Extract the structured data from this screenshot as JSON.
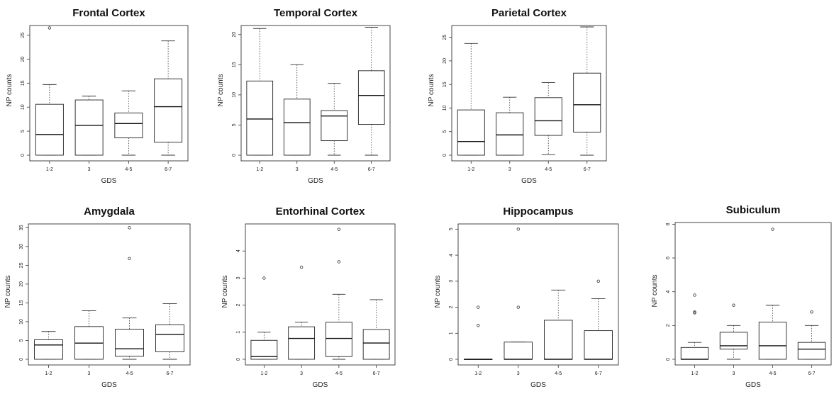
{
  "figure": {
    "xlabel": "GDS",
    "ylabel": "NP counts"
  },
  "chart_data": [
    {
      "type": "box",
      "title": "Frontal Cortex",
      "xlabel": "GDS",
      "ylabel": "NP counts",
      "ylim": [
        0,
        27
      ],
      "yticks": [
        0,
        5,
        10,
        15,
        20,
        25
      ],
      "categories": [
        "1-2",
        "3",
        "4-5",
        "6-7"
      ],
      "boxes": [
        {
          "min": 0,
          "q1": 0,
          "median": 4.3,
          "q3": 10.6,
          "max": 14.7,
          "outliers": [
            26.5
          ]
        },
        {
          "min": 0,
          "q1": 0,
          "median": 6.2,
          "q3": 11.5,
          "max": 12.3,
          "outliers": []
        },
        {
          "min": 0,
          "q1": 3.6,
          "median": 6.6,
          "q3": 8.8,
          "max": 13.4,
          "outliers": []
        },
        {
          "min": 0,
          "q1": 2.7,
          "median": 10.1,
          "q3": 15.9,
          "max": 23.8,
          "outliers": []
        }
      ]
    },
    {
      "type": "box",
      "title": "Temporal Cortex",
      "xlabel": "GDS",
      "ylabel": "NP counts",
      "ylim": [
        0,
        21.5
      ],
      "yticks": [
        0,
        5,
        10,
        15,
        20
      ],
      "categories": [
        "1-2",
        "3",
        "4-5",
        "6-7"
      ],
      "boxes": [
        {
          "min": 0,
          "q1": 0,
          "median": 6.0,
          "q3": 12.3,
          "max": 21.0,
          "outliers": []
        },
        {
          "min": 0,
          "q1": 0,
          "median": 5.4,
          "q3": 9.3,
          "max": 15.0,
          "outliers": []
        },
        {
          "min": 0,
          "q1": 2.4,
          "median": 6.5,
          "q3": 7.4,
          "max": 11.9,
          "outliers": []
        },
        {
          "min": 0,
          "q1": 5.1,
          "median": 9.9,
          "q3": 14.0,
          "max": 21.2,
          "outliers": []
        }
      ]
    },
    {
      "type": "box",
      "title": "Parietal Cortex",
      "xlabel": "GDS",
      "ylabel": "NP counts",
      "ylim": [
        0,
        27.5
      ],
      "yticks": [
        0,
        5,
        10,
        15,
        20,
        25
      ],
      "categories": [
        "1-2",
        "3",
        "4-5",
        "6-7"
      ],
      "boxes": [
        {
          "min": 0,
          "q1": 0,
          "median": 2.9,
          "q3": 9.6,
          "max": 23.7,
          "outliers": []
        },
        {
          "min": 0,
          "q1": 0,
          "median": 4.3,
          "q3": 9.0,
          "max": 12.3,
          "outliers": []
        },
        {
          "min": 0.1,
          "q1": 4.2,
          "median": 7.3,
          "q3": 12.2,
          "max": 15.4,
          "outliers": []
        },
        {
          "min": 0,
          "q1": 4.9,
          "median": 10.7,
          "q3": 17.4,
          "max": 27.2,
          "outliers": []
        }
      ]
    },
    {
      "type": "box",
      "title": "Amygdala",
      "xlabel": "GDS",
      "ylabel": "NP counts",
      "ylim": [
        0,
        36
      ],
      "yticks": [
        0,
        5,
        10,
        15,
        20,
        25,
        30,
        35
      ],
      "categories": [
        "1-2",
        "3",
        "4-5",
        "6-7"
      ],
      "boxes": [
        {
          "min": 0,
          "q1": 0,
          "median": 3.8,
          "q3": 5.2,
          "max": 7.4,
          "outliers": []
        },
        {
          "min": 0,
          "q1": 0,
          "median": 4.3,
          "q3": 8.7,
          "max": 12.9,
          "outliers": []
        },
        {
          "min": 0,
          "q1": 0.8,
          "median": 2.8,
          "q3": 8.0,
          "max": 11.0,
          "outliers": [
            26.8,
            35.0
          ]
        },
        {
          "min": 0,
          "q1": 2.0,
          "median": 6.6,
          "q3": 9.2,
          "max": 14.8,
          "outliers": []
        }
      ]
    },
    {
      "type": "box",
      "title": "Entorhinal Cortex",
      "xlabel": "GDS",
      "ylabel": "NP counts",
      "ylim": [
        0,
        5
      ],
      "yticks": [
        0,
        1,
        2,
        3,
        4
      ],
      "categories": [
        "1-2",
        "3",
        "4-5",
        "6-7"
      ],
      "boxes": [
        {
          "min": 0,
          "q1": 0,
          "median": 0.1,
          "q3": 0.7,
          "max": 1.0,
          "outliers": [
            3.0
          ]
        },
        {
          "min": 0,
          "q1": 0,
          "median": 0.77,
          "q3": 1.2,
          "max": 1.37,
          "outliers": [
            3.4
          ]
        },
        {
          "min": 0,
          "q1": 0.1,
          "median": 0.77,
          "q3": 1.37,
          "max": 2.4,
          "outliers": [
            3.6,
            4.8
          ]
        },
        {
          "min": 0,
          "q1": 0,
          "median": 0.6,
          "q3": 1.1,
          "max": 2.2,
          "outliers": []
        }
      ]
    },
    {
      "type": "box",
      "title": "Hippocampus",
      "xlabel": "GDS",
      "ylabel": "NP counts",
      "ylim": [
        0,
        5.2
      ],
      "yticks": [
        0,
        1,
        2,
        3,
        4,
        5
      ],
      "categories": [
        "1-2",
        "3",
        "4-5",
        "6-7"
      ],
      "boxes": [
        {
          "min": 0,
          "q1": 0,
          "median": 0,
          "q3": 0,
          "max": 0,
          "outliers": [
            1.3,
            2.0
          ]
        },
        {
          "min": 0,
          "q1": 0,
          "median": 0,
          "q3": 0.66,
          "max": 0.66,
          "outliers": [
            2.0,
            5.0
          ]
        },
        {
          "min": 0,
          "q1": 0,
          "median": 0,
          "q3": 1.5,
          "max": 2.66,
          "outliers": []
        },
        {
          "min": 0,
          "q1": 0,
          "median": 0,
          "q3": 1.1,
          "max": 2.33,
          "outliers": [
            3.0
          ]
        }
      ]
    },
    {
      "type": "box",
      "title": "Subiculum",
      "xlabel": "GDS",
      "ylabel": "NP counts",
      "ylim": [
        0,
        8.1
      ],
      "yticks": [
        0,
        2,
        4,
        6,
        8
      ],
      "categories": [
        "1-2",
        "3",
        "4-5",
        "6-7"
      ],
      "boxes": [
        {
          "min": 0,
          "q1": 0,
          "median": 0,
          "q3": 0.7,
          "max": 1.0,
          "outliers": [
            2.75,
            2.8,
            3.8
          ]
        },
        {
          "min": 0,
          "q1": 0.6,
          "median": 0.8,
          "q3": 1.6,
          "max": 2.0,
          "outliers": [
            3.2
          ]
        },
        {
          "min": 0,
          "q1": 0,
          "median": 0.8,
          "q3": 2.2,
          "max": 3.2,
          "outliers": [
            7.7
          ]
        },
        {
          "min": 0,
          "q1": 0,
          "median": 0.6,
          "q3": 1.0,
          "max": 2.0,
          "outliers": [
            2.8
          ]
        }
      ]
    }
  ]
}
